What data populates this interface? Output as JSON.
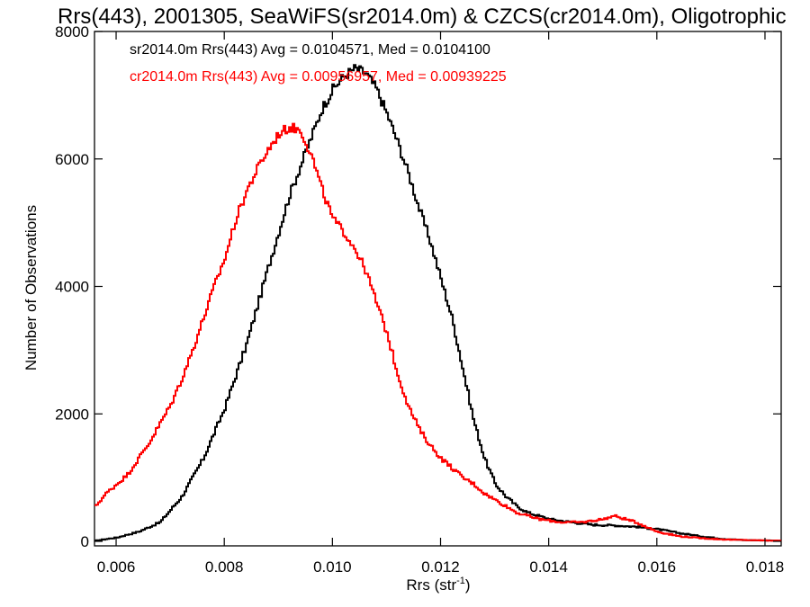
{
  "chart_data": {
    "type": "line",
    "title": "Rrs(443), 2001305, SeaWiFS(sr2014.0m) & CZCS(cr2014.0m), Oligotrophic",
    "xlabel": "Rrs (str",
    "xlabel_sup": "-1",
    "xlabel_end": ")",
    "ylabel": "Number of Observations",
    "xlim": [
      0.0056,
      0.0183
    ],
    "ylim": [
      0,
      8000
    ],
    "x_ticks": [
      0.006,
      0.008,
      0.01,
      0.012,
      0.014,
      0.016,
      0.018
    ],
    "x_tick_labels": [
      "0.006",
      "0.008",
      "0.010",
      "0.012",
      "0.014",
      "0.016",
      "0.018"
    ],
    "y_ticks": [
      0,
      2000,
      4000,
      6000,
      8000
    ],
    "y_tick_labels": [
      "0",
      "2000",
      "4000",
      "6000",
      "8000"
    ],
    "step": true,
    "grid": false,
    "legend_position": "top-left",
    "series": [
      {
        "name": "sr2014.0m Rrs(443) Avg = 0.0104571, Med = 0.0104100",
        "color": "#000000",
        "x": [
          0.0056,
          0.006,
          0.0064,
          0.0068,
          0.0072,
          0.0076,
          0.008,
          0.0084,
          0.0088,
          0.0092,
          0.0094,
          0.0096,
          0.0098,
          0.01,
          0.0102,
          0.0104,
          0.0106,
          0.0108,
          0.011,
          0.0112,
          0.0114,
          0.0116,
          0.0118,
          0.012,
          0.0122,
          0.0124,
          0.0126,
          0.0128,
          0.013,
          0.0132,
          0.0134,
          0.0136,
          0.014,
          0.0144,
          0.0148,
          0.0152,
          0.0156,
          0.016,
          0.0164,
          0.0168,
          0.0172,
          0.0176,
          0.0183
        ],
        "y": [
          10,
          60,
          150,
          300,
          700,
          1300,
          2100,
          3100,
          4300,
          5450,
          5900,
          6350,
          6800,
          7100,
          7300,
          7420,
          7350,
          7100,
          6700,
          6250,
          5750,
          5200,
          4700,
          4100,
          3500,
          2700,
          1900,
          1300,
          900,
          700,
          550,
          450,
          350,
          300,
          260,
          250,
          230,
          190,
          130,
          80,
          40,
          20,
          10
        ]
      },
      {
        "name": "cr2014.0m Rrs(443) Avg = 0.00956957, Med = 0.00939225",
        "color": "#ff0000",
        "x": [
          0.0056,
          0.0058,
          0.006,
          0.0062,
          0.0064,
          0.0066,
          0.0068,
          0.007,
          0.0072,
          0.0074,
          0.0076,
          0.0078,
          0.008,
          0.0082,
          0.0084,
          0.0086,
          0.0088,
          0.009,
          0.0092,
          0.0094,
          0.0096,
          0.0098,
          0.01,
          0.0102,
          0.0104,
          0.0106,
          0.0108,
          0.011,
          0.0112,
          0.0114,
          0.0116,
          0.0118,
          0.012,
          0.0122,
          0.0124,
          0.0126,
          0.0128,
          0.013,
          0.0132,
          0.0134,
          0.0138,
          0.0142,
          0.0146,
          0.015,
          0.0152,
          0.0154,
          0.0156,
          0.016,
          0.0164,
          0.0168,
          0.0172,
          0.0176,
          0.0183
        ],
        "y": [
          550,
          750,
          900,
          1050,
          1300,
          1550,
          1850,
          2150,
          2550,
          3000,
          3500,
          4000,
          4450,
          5050,
          5500,
          5850,
          6150,
          6400,
          6500,
          6450,
          6050,
          5500,
          5050,
          4850,
          4600,
          4250,
          3750,
          3250,
          2600,
          2100,
          1750,
          1500,
          1300,
          1150,
          1000,
          900,
          750,
          650,
          550,
          450,
          350,
          300,
          300,
          350,
          400,
          350,
          300,
          150,
          80,
          50,
          30,
          20,
          10
        ]
      }
    ]
  }
}
